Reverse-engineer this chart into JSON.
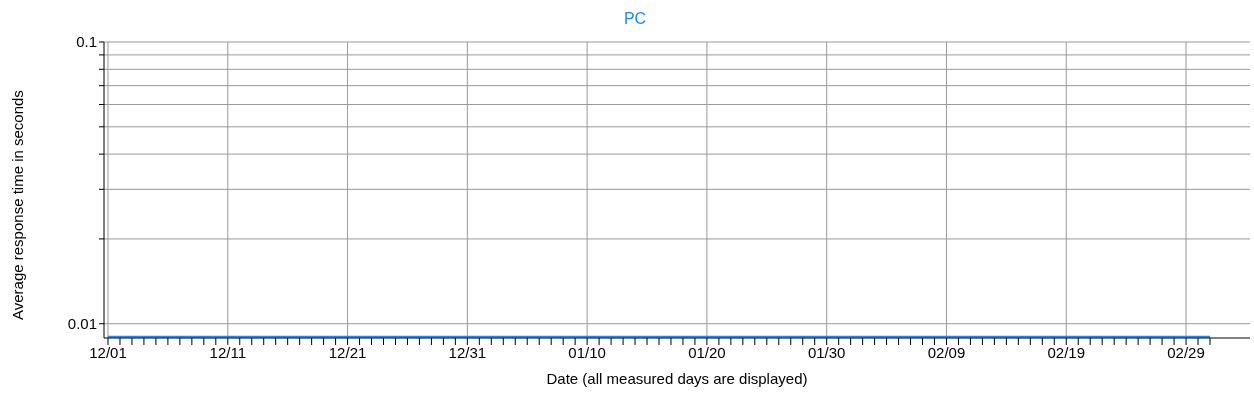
{
  "chart_data": {
    "type": "line",
    "subtitle": "PC",
    "xlabel": "Date (all measured days are displayed)",
    "ylabel": "Average response time in seconds",
    "categories": [
      "12/01",
      null,
      null,
      null,
      null,
      null,
      null,
      null,
      null,
      null,
      "12/11",
      null,
      null,
      null,
      null,
      null,
      null,
      null,
      null,
      null,
      "12/21",
      null,
      null,
      null,
      null,
      null,
      null,
      null,
      null,
      null,
      "12/31",
      null,
      null,
      null,
      null,
      null,
      null,
      null,
      null,
      null,
      "01/10",
      null,
      null,
      null,
      null,
      null,
      null,
      null,
      null,
      null,
      "01/20",
      null,
      null,
      null,
      null,
      null,
      null,
      null,
      null,
      null,
      "01/30",
      null,
      null,
      null,
      null,
      null,
      null,
      null,
      null,
      null,
      "02/09",
      null,
      null,
      null,
      null,
      null,
      null,
      null,
      null,
      null,
      "02/19",
      null,
      null,
      null,
      null,
      null,
      null,
      null,
      null,
      null,
      "02/29",
      null,
      null
    ],
    "series": [
      {
        "color": "#1a8cff",
        "values": [
          0.009,
          0.009,
          0.009,
          0.009,
          0.009,
          0.009,
          0.009,
          0.009,
          0.009,
          0.009,
          0.009,
          0.009,
          0.009,
          0.009,
          0.009,
          0.009,
          0.009,
          0.009,
          0.009,
          0.009,
          0.009,
          0.009,
          0.009,
          0.009,
          0.009,
          0.009,
          0.009,
          0.009,
          0.009,
          0.009,
          0.009,
          0.009,
          0.009,
          0.009,
          0.009,
          0.009,
          0.009,
          0.009,
          0.009,
          0.009,
          0.009,
          0.009,
          0.009,
          0.009,
          0.009,
          0.009,
          0.009,
          0.009,
          0.009,
          0.009,
          0.009,
          0.009,
          0.009,
          0.009,
          0.009,
          0.009,
          0.009,
          0.009,
          0.009,
          0.009,
          0.009,
          0.009,
          0.009,
          0.009,
          0.009,
          0.009,
          0.009,
          0.009,
          0.009,
          0.009,
          0.009,
          0.009,
          0.009,
          0.009,
          0.009,
          0.009,
          0.009,
          0.009,
          0.009,
          0.009,
          0.009,
          0.009,
          0.009,
          0.009,
          0.009,
          0.009,
          0.009,
          0.009,
          0.009,
          0.009,
          0.009,
          0.009,
          0.009
        ]
      }
    ],
    "log": "y",
    "grid": true,
    "legend": false,
    "marker": "none",
    "line_style": "solid",
    "ylim": [
      0.0089,
      0.1
    ],
    "yticks": [
      0.01,
      {
        "value": 0.02,
        "label": null
      },
      {
        "value": 0.03,
        "label": null
      },
      {
        "value": 0.04,
        "label": null
      },
      {
        "value": 0.05,
        "label": null
      },
      {
        "value": 0.06,
        "label": null
      },
      {
        "value": 0.07,
        "label": null
      },
      {
        "value": 0.08,
        "label": null
      },
      {
        "value": 0.09,
        "label": null
      },
      0.1
    ]
  }
}
